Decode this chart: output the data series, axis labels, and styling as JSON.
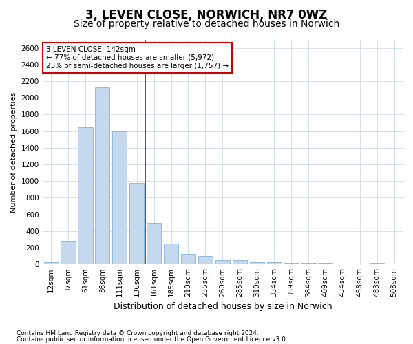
{
  "title": "3, LEVEN CLOSE, NORWICH, NR7 0WZ",
  "subtitle": "Size of property relative to detached houses in Norwich",
  "xlabel": "Distribution of detached houses by size in Norwich",
  "ylabel": "Number of detached properties",
  "footnote1": "Contains HM Land Registry data © Crown copyright and database right 2024.",
  "footnote2": "Contains public sector information licensed under the Open Government Licence v3.0.",
  "categories": [
    "12sqm",
    "37sqm",
    "61sqm",
    "86sqm",
    "111sqm",
    "136sqm",
    "161sqm",
    "185sqm",
    "210sqm",
    "235sqm",
    "260sqm",
    "285sqm",
    "310sqm",
    "334sqm",
    "359sqm",
    "384sqm",
    "409sqm",
    "434sqm",
    "458sqm",
    "483sqm",
    "508sqm"
  ],
  "values": [
    25,
    275,
    1650,
    2125,
    1600,
    975,
    500,
    250,
    125,
    100,
    50,
    50,
    30,
    25,
    20,
    20,
    20,
    10,
    5,
    15,
    5
  ],
  "bar_color": "#c5d9ee",
  "bar_edge_color": "#88b4d4",
  "vline_x": 5.5,
  "vline_color": "#cc0000",
  "annotation_text": "3 LEVEN CLOSE: 142sqm\n← 77% of detached houses are smaller (5,972)\n23% of semi-detached houses are larger (1,757) →",
  "annotation_box_color": "#ffffff",
  "annotation_box_edge": "#cc0000",
  "ylim": [
    0,
    2700
  ],
  "yticks": [
    0,
    200,
    400,
    600,
    800,
    1000,
    1200,
    1400,
    1600,
    1800,
    2000,
    2200,
    2400,
    2600
  ],
  "title_fontsize": 12,
  "subtitle_fontsize": 10,
  "xlabel_fontsize": 9,
  "ylabel_fontsize": 8,
  "tick_fontsize": 7.5,
  "annotation_fontsize": 7.5,
  "footnote_fontsize": 6.5,
  "bg_color": "#ffffff",
  "plot_bg_color": "#ffffff",
  "grid_color": "#d0dce8"
}
